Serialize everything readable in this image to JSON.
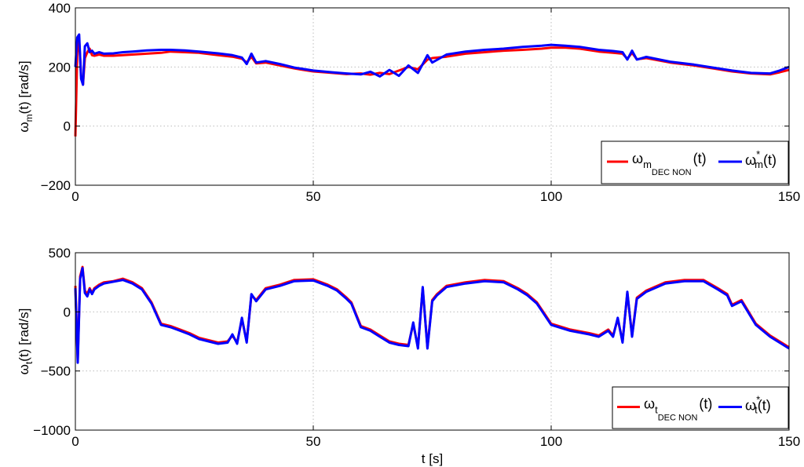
{
  "chart_data": [
    {
      "type": "line",
      "ylabel": "ω",
      "ylabel_sub": "m",
      "ylabel_rest": "(t) [rad/s]",
      "xlabel": "",
      "xlim": [
        0,
        150
      ],
      "ylim": [
        -200,
        400
      ],
      "xticks": [
        0,
        50,
        100,
        150
      ],
      "yticks": [
        -200,
        0,
        200,
        400
      ],
      "grid": true,
      "legend": "bottom-right",
      "series": [
        {
          "name": "ω_m DEC NON(t)",
          "legend_main": "ω",
          "legend_sub": "m",
          "legend_subsub": "DEC NON",
          "legend_tail": "(t)",
          "color": "#ff0000",
          "x": [
            0,
            0.4,
            0.8,
            1.2,
            1.6,
            2,
            2.5,
            3,
            3.5,
            4,
            5,
            6,
            8,
            10,
            12,
            15,
            18,
            20,
            23,
            26,
            30,
            33,
            35,
            36,
            37,
            38,
            40,
            43,
            46,
            50,
            54,
            57,
            60,
            62,
            64,
            66,
            68,
            70,
            72,
            74,
            75,
            78,
            82,
            86,
            90,
            94,
            98,
            100,
            103,
            106,
            110,
            113,
            115,
            116,
            117,
            118,
            120,
            125,
            130,
            134,
            138,
            142,
            146,
            148,
            150
          ],
          "y": [
            -35,
            250,
            290,
            170,
            140,
            230,
            250,
            262,
            240,
            238,
            242,
            238,
            238,
            240,
            242,
            245,
            248,
            252,
            250,
            248,
            240,
            235,
            228,
            215,
            235,
            212,
            215,
            205,
            195,
            185,
            180,
            176,
            178,
            174,
            180,
            176,
            188,
            200,
            192,
            225,
            230,
            235,
            245,
            250,
            255,
            258,
            262,
            265,
            265,
            262,
            252,
            248,
            245,
            228,
            248,
            226,
            230,
            215,
            205,
            195,
            185,
            178,
            175,
            182,
            190
          ]
        },
        {
          "name": "ω*_m(t)",
          "legend_main": "ω",
          "legend_sub": "m",
          "legend_sup": "*",
          "legend_tail": "(t)",
          "color": "#0000ff",
          "x": [
            0,
            0.4,
            0.8,
            1.2,
            1.6,
            2,
            2.5,
            3,
            3.5,
            4,
            5,
            6,
            8,
            10,
            12,
            15,
            18,
            20,
            23,
            26,
            30,
            33,
            35,
            36,
            37,
            38,
            40,
            43,
            46,
            50,
            54,
            57,
            60,
            62,
            64,
            66,
            68,
            70,
            72,
            74,
            75,
            78,
            82,
            86,
            90,
            94,
            98,
            100,
            103,
            106,
            110,
            113,
            115,
            116,
            117,
            118,
            120,
            125,
            130,
            134,
            138,
            142,
            146,
            148,
            150
          ],
          "y": [
            200,
            300,
            310,
            160,
            140,
            270,
            280,
            250,
            255,
            245,
            250,
            245,
            246,
            250,
            252,
            256,
            258,
            258,
            256,
            252,
            246,
            240,
            232,
            210,
            245,
            215,
            220,
            210,
            198,
            188,
            182,
            178,
            175,
            184,
            168,
            190,
            170,
            205,
            180,
            240,
            215,
            242,
            252,
            258,
            262,
            268,
            272,
            275,
            272,
            268,
            258,
            254,
            250,
            225,
            255,
            225,
            234,
            218,
            208,
            198,
            188,
            180,
            178,
            188,
            200
          ]
        }
      ]
    },
    {
      "type": "line",
      "ylabel": "ω",
      "ylabel_sub": "t",
      "ylabel_rest": "(t) [rad/s]",
      "xlabel": "t [s]",
      "xlim": [
        0,
        150
      ],
      "ylim": [
        -1000,
        500
      ],
      "xticks": [
        0,
        50,
        100,
        150
      ],
      "yticks": [
        -1000,
        -500,
        0,
        500
      ],
      "grid": true,
      "legend": "bottom-right",
      "series": [
        {
          "name": "ω_t DEC NON(t)",
          "legend_main": "ω",
          "legend_sub": "t",
          "legend_subsub": "DEC NON",
          "legend_tail": "(t)",
          "color": "#ff0000",
          "x": [
            0,
            0.5,
            1,
            1.5,
            2,
            2.5,
            3,
            3.5,
            4,
            5,
            6,
            8,
            10,
            12,
            14,
            16,
            18,
            20,
            22,
            24,
            26,
            28,
            30,
            32,
            33,
            34,
            35,
            36,
            37,
            38,
            40,
            43,
            46,
            50,
            53,
            55,
            57,
            58,
            60,
            62,
            64,
            66,
            68,
            70,
            71,
            72,
            73,
            74,
            75,
            76,
            78,
            82,
            86,
            90,
            93,
            95,
            97,
            98,
            100,
            104,
            108,
            110,
            112,
            113,
            114,
            115,
            116,
            117,
            118,
            120,
            124,
            128,
            132,
            135,
            137,
            138,
            140,
            143,
            146,
            148,
            150
          ],
          "y": [
            220,
            -400,
            300,
            380,
            180,
            150,
            200,
            160,
            200,
            230,
            250,
            260,
            280,
            250,
            200,
            80,
            -100,
            -120,
            -150,
            -180,
            -220,
            -240,
            -260,
            -250,
            -200,
            -260,
            -60,
            -250,
            140,
            100,
            200,
            230,
            270,
            275,
            230,
            190,
            120,
            80,
            -120,
            -150,
            -200,
            -250,
            -270,
            -280,
            -100,
            -300,
            200,
            -300,
            100,
            150,
            220,
            250,
            270,
            260,
            200,
            150,
            80,
            20,
            -100,
            -150,
            -180,
            -200,
            -150,
            -200,
            -60,
            -250,
            160,
            -200,
            120,
            180,
            250,
            270,
            270,
            200,
            150,
            60,
            100,
            -100,
            -200,
            -250,
            -300
          ]
        },
        {
          "name": "ω*_t(t)",
          "legend_main": "ω",
          "legend_sub": "t",
          "legend_sup": "*",
          "legend_tail": "(t)",
          "color": "#0000ff",
          "x": [
            0,
            0.5,
            1,
            1.5,
            2,
            2.5,
            3,
            3.5,
            4,
            5,
            6,
            8,
            10,
            12,
            14,
            16,
            18,
            20,
            22,
            24,
            26,
            28,
            30,
            32,
            33,
            34,
            35,
            36,
            37,
            38,
            40,
            43,
            46,
            50,
            53,
            55,
            57,
            58,
            60,
            62,
            64,
            66,
            68,
            70,
            71,
            72,
            73,
            74,
            75,
            76,
            78,
            82,
            86,
            90,
            93,
            95,
            97,
            98,
            100,
            104,
            108,
            110,
            112,
            113,
            114,
            115,
            116,
            117,
            118,
            120,
            124,
            128,
            132,
            135,
            137,
            138,
            140,
            143,
            146,
            148,
            150
          ],
          "y": [
            200,
            -430,
            280,
            370,
            160,
            130,
            190,
            150,
            190,
            220,
            240,
            255,
            270,
            240,
            190,
            70,
            -110,
            -130,
            -160,
            -190,
            -230,
            -250,
            -270,
            -260,
            -190,
            -270,
            -50,
            -260,
            150,
            90,
            190,
            220,
            260,
            265,
            220,
            180,
            110,
            70,
            -130,
            -160,
            -210,
            -260,
            -280,
            -290,
            -90,
            -310,
            210,
            -310,
            90,
            140,
            210,
            240,
            260,
            250,
            190,
            140,
            70,
            10,
            -110,
            -160,
            -190,
            -210,
            -160,
            -210,
            -50,
            -260,
            170,
            -210,
            110,
            170,
            240,
            260,
            260,
            190,
            140,
            50,
            90,
            -110,
            -210,
            -260,
            -310
          ]
        }
      ]
    }
  ]
}
